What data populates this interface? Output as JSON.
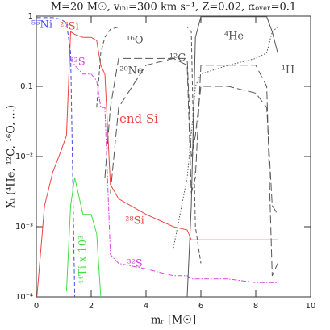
{
  "chart_data": {
    "type": "line",
    "title": "M=20 M☉, vᵢₙᵢ=300 km s⁻¹, Z=0.02, αₒᵥₑᵣ=0.1",
    "x_label": "mᵣ [M☉]",
    "y_label": "Xᵢ (⁴He, ¹²C, ¹⁶O, ...)",
    "log_y": true,
    "xlim": [
      0,
      10
    ],
    "xticks": [
      0,
      2,
      4,
      6,
      8,
      10
    ],
    "ylim": [
      0.0001,
      1
    ],
    "yticks": [
      {
        "value": 0.0001,
        "label": "10⁻⁴"
      },
      {
        "value": 0.001,
        "label": "10⁻³"
      },
      {
        "value": 0.01,
        "label": "10⁻²"
      },
      0.1,
      1
    ],
    "x": [
      0.02,
      0.3,
      0.6,
      0.9,
      1.1,
      1.25,
      1.4,
      1.7,
      2.0,
      2.2,
      2.35,
      2.5,
      2.7,
      3.0,
      4.0,
      5.0,
      5.5,
      5.65,
      5.8,
      6.0,
      7.0,
      8.0,
      8.4,
      8.6,
      8.8
    ],
    "series": [
      {
        "name": "²⁸Si",
        "color": "#ee4444",
        "dash": "solid",
        "values": [
          0.0001,
          0.002,
          0.006,
          0.012,
          0.02,
          0.6,
          0.55,
          0.5,
          0.5,
          0.45,
          0.2,
          0.15,
          0.004,
          0.0025,
          0.0015,
          0.001,
          0.0009,
          0.00065,
          0.00065,
          0.00065,
          0.00065,
          0.00065,
          0.00065,
          0.00065,
          0.00065
        ]
      },
      {
        "name": "³²S",
        "color": "#e040e0",
        "dash": "dashdot",
        "values": [
          null,
          null,
          null,
          null,
          null,
          0.25,
          0.2,
          0.15,
          0.15,
          0.12,
          0.05,
          0.05,
          0.0004,
          0.0003,
          0.00025,
          0.0002,
          0.0002,
          0.00018,
          0.00018,
          0.00018,
          0.00018,
          0.00016,
          0.00016,
          0.00016,
          0.00016
        ]
      },
      {
        "name": "⁵⁶Ni",
        "color": "#4848e8",
        "dash": "dashed",
        "values": [
          0.95,
          0.95,
          0.95,
          0.9,
          0.8,
          0.3,
          0.0001,
          null,
          null,
          null,
          null,
          null,
          null,
          null,
          null,
          null,
          null,
          null,
          null,
          null,
          null,
          null,
          null,
          null,
          null
        ]
      },
      {
        "name": "⁴⁴Ti x 10³",
        "color": "#44dd44",
        "dash": "solid",
        "values": [
          null,
          null,
          null,
          null,
          0.00012,
          0.002,
          0.005,
          0.0015,
          0.0015,
          0.0008,
          0.0001,
          null,
          null,
          null,
          null,
          null,
          null,
          null,
          null,
          null,
          null,
          null,
          null,
          null,
          null
        ]
      },
      {
        "name": "¹⁶O",
        "color": "#555555",
        "dash": "dashed",
        "values": [
          null,
          null,
          null,
          null,
          null,
          null,
          null,
          null,
          null,
          0.05,
          0.3,
          0.5,
          0.65,
          0.7,
          0.7,
          0.7,
          0.7,
          0.6,
          0.001,
          0.0003,
          null,
          null,
          null,
          null,
          null
        ]
      },
      {
        "name": "²⁰Ne",
        "color": "#555555",
        "dash": "longdash",
        "values": [
          null,
          null,
          null,
          null,
          null,
          null,
          null,
          null,
          null,
          null,
          null,
          0.005,
          0.05,
          0.25,
          0.25,
          0.25,
          0.2,
          0.003,
          0.005,
          0.2,
          0.2,
          0.2,
          0.1,
          0.0002,
          0.0003
        ]
      },
      {
        "name": "¹²C",
        "color": "#555555",
        "dash": "longdash",
        "values": [
          null,
          null,
          null,
          null,
          null,
          null,
          null,
          null,
          null,
          null,
          null,
          null,
          0.003,
          0.05,
          0.2,
          0.25,
          0.25,
          0.01,
          0.02,
          0.1,
          0.1,
          0.08,
          0.05,
          0.002,
          0.0015
        ]
      },
      {
        "name": "⁴He",
        "color": "#555555",
        "dash": "solid",
        "values": [
          null,
          null,
          null,
          null,
          null,
          null,
          null,
          null,
          null,
          null,
          null,
          null,
          null,
          null,
          null,
          null,
          0.0001,
          0.002,
          0.5,
          0.98,
          0.98,
          0.98,
          0.98,
          0.6,
          0.3
        ]
      },
      {
        "name": "¹H",
        "color": "#555555",
        "dash": "dotted",
        "values": [
          null,
          null,
          null,
          null,
          null,
          null,
          null,
          null,
          null,
          null,
          null,
          null,
          null,
          null,
          null,
          0.0005,
          0.005,
          0.02,
          0.1,
          0.15,
          0.2,
          0.25,
          0.3,
          0.6,
          0.7
        ]
      }
    ],
    "annotations": [
      {
        "text": "end Si",
        "color": "#ee4444"
      }
    ]
  }
}
